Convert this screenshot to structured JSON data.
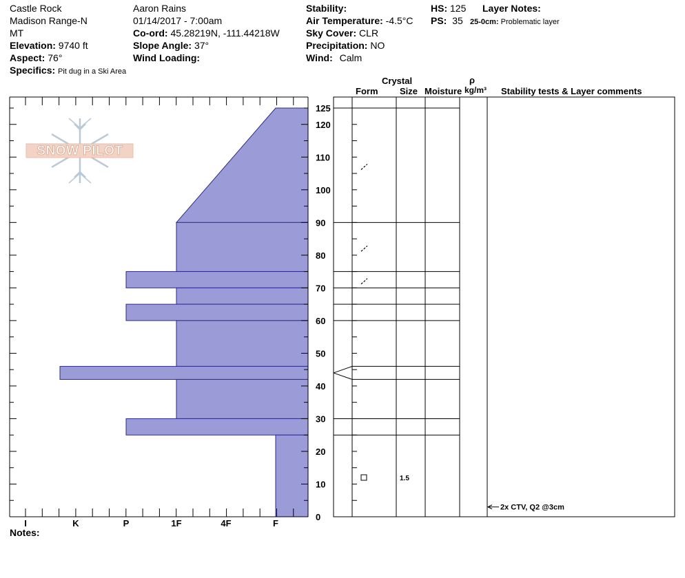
{
  "header": {
    "location": "Castle Rock",
    "range": "Madison Range-N",
    "state": "MT",
    "elevation_label": "Elevation:",
    "elevation": "9740 ft",
    "aspect_label": "Aspect:",
    "aspect": "76°",
    "specifics_label": "Specifics:",
    "specifics": "Pit dug in a Ski Area",
    "observer": "Aaron Rains",
    "datetime": "01/14/2017 - 7:00am",
    "coord_label": "Co-ord:",
    "coord": "45.28219N, -111.44218W",
    "slope_label": "Slope Angle:",
    "slope": "37°",
    "wind_loading_label": "Wind Loading:",
    "wind_loading": "",
    "stability_label": "Stability:",
    "stability": "",
    "air_temp_label": "Air Temperature:",
    "air_temp": "-4.5°C",
    "sky_label": "Sky Cover:",
    "sky": "CLR",
    "precip_label": "Precipitation:",
    "precip": "NO",
    "wind_label": "Wind:",
    "wind": "Calm",
    "hs_label": "HS:",
    "hs": "125",
    "ps_label": "PS:",
    "ps": "35",
    "layer_notes_label": "Layer Notes:",
    "layer_note_range": "25-0cm:",
    "layer_note_text": "Problematic layer"
  },
  "logo_text": "SNOW PILOT",
  "notes_label": "Notes:",
  "columns": {
    "crystal": "Crystal",
    "form": "Form",
    "size": "Size",
    "moisture": "Moisture",
    "rho": "ρ",
    "density_unit": "kg/m³",
    "stability_comments": "Stability tests & Layer comments"
  },
  "colors": {
    "layer_fill": "#9b9bd8",
    "layer_stroke": "#2a2a8c",
    "axis": "#000000"
  },
  "chart_data": {
    "type": "snow-profile",
    "height_axis": {
      "min": 0,
      "max": 125,
      "ticks": [
        0,
        10,
        20,
        30,
        40,
        50,
        60,
        70,
        80,
        90,
        100,
        110,
        120,
        125
      ]
    },
    "hardness_axis": {
      "ticks": [
        "I",
        "K",
        "P",
        "1F",
        "4F",
        "F"
      ]
    },
    "layers": [
      {
        "bottom": 90,
        "top": 125,
        "hardness_bottom": "1F",
        "hardness_top": "F"
      },
      {
        "bottom": 75,
        "top": 90,
        "hardness": "1F"
      },
      {
        "bottom": 70,
        "top": 75,
        "hardness": "P"
      },
      {
        "bottom": 65,
        "top": 70,
        "hardness": "1F"
      },
      {
        "bottom": 60,
        "top": 65,
        "hardness": "P"
      },
      {
        "bottom": 46,
        "top": 60,
        "hardness": "1F"
      },
      {
        "bottom": 42,
        "top": 46,
        "hardness": "I+"
      },
      {
        "bottom": 30,
        "top": 42,
        "hardness": "1F"
      },
      {
        "bottom": 25,
        "top": 30,
        "hardness": "P"
      },
      {
        "bottom": 0,
        "top": 25,
        "hardness": "F"
      }
    ],
    "crystals": [
      {
        "height": 107,
        "form": "decomposing-fragments",
        "size": ""
      },
      {
        "height": 82,
        "form": "decomposing-fragments",
        "size": ""
      },
      {
        "height": 72,
        "form": "decomposing-fragments",
        "size": ""
      },
      {
        "height": 12,
        "form": "faceted",
        "size": "1.5"
      }
    ],
    "stability_tests": [
      {
        "height": 3,
        "text": "2x CTV, Q2 @3cm"
      }
    ]
  }
}
